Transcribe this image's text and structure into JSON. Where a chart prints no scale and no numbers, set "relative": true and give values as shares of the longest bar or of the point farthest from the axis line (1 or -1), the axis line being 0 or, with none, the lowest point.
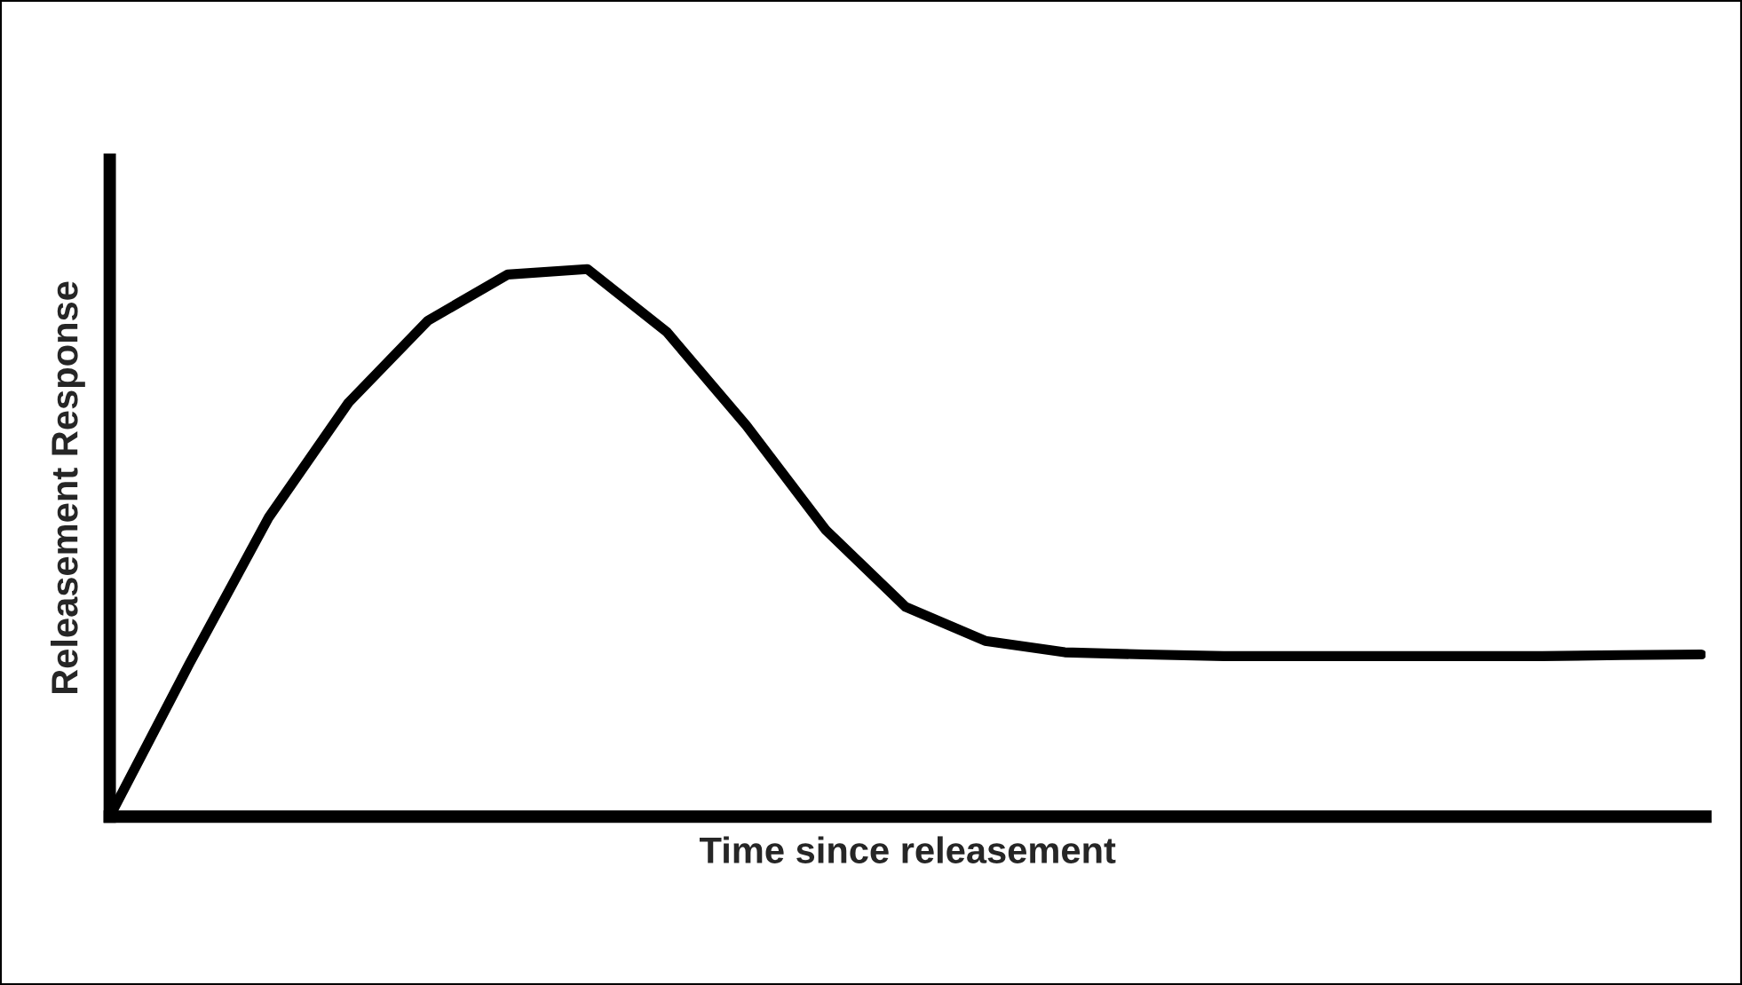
{
  "chart_data": {
    "type": "line",
    "relative": true,
    "xlabel": "Time since releasement",
    "ylabel": "Releasement Response",
    "categories": [
      null,
      null,
      null,
      null,
      null,
      null,
      null,
      null,
      null,
      null,
      null,
      null,
      null,
      null,
      null,
      null,
      null,
      null,
      null,
      null,
      null
    ],
    "series": [
      {
        "color": "#000000",
        "values": [
          0,
          0.279,
          0.547,
          0.756,
          0.906,
          0.99,
          1,
          0.885,
          0.714,
          0.523,
          0.383,
          0.321,
          0.3,
          0.296,
          0.293,
          0.293,
          0.293,
          0.293,
          0.293,
          0.295,
          0.296
        ]
      }
    ]
  }
}
